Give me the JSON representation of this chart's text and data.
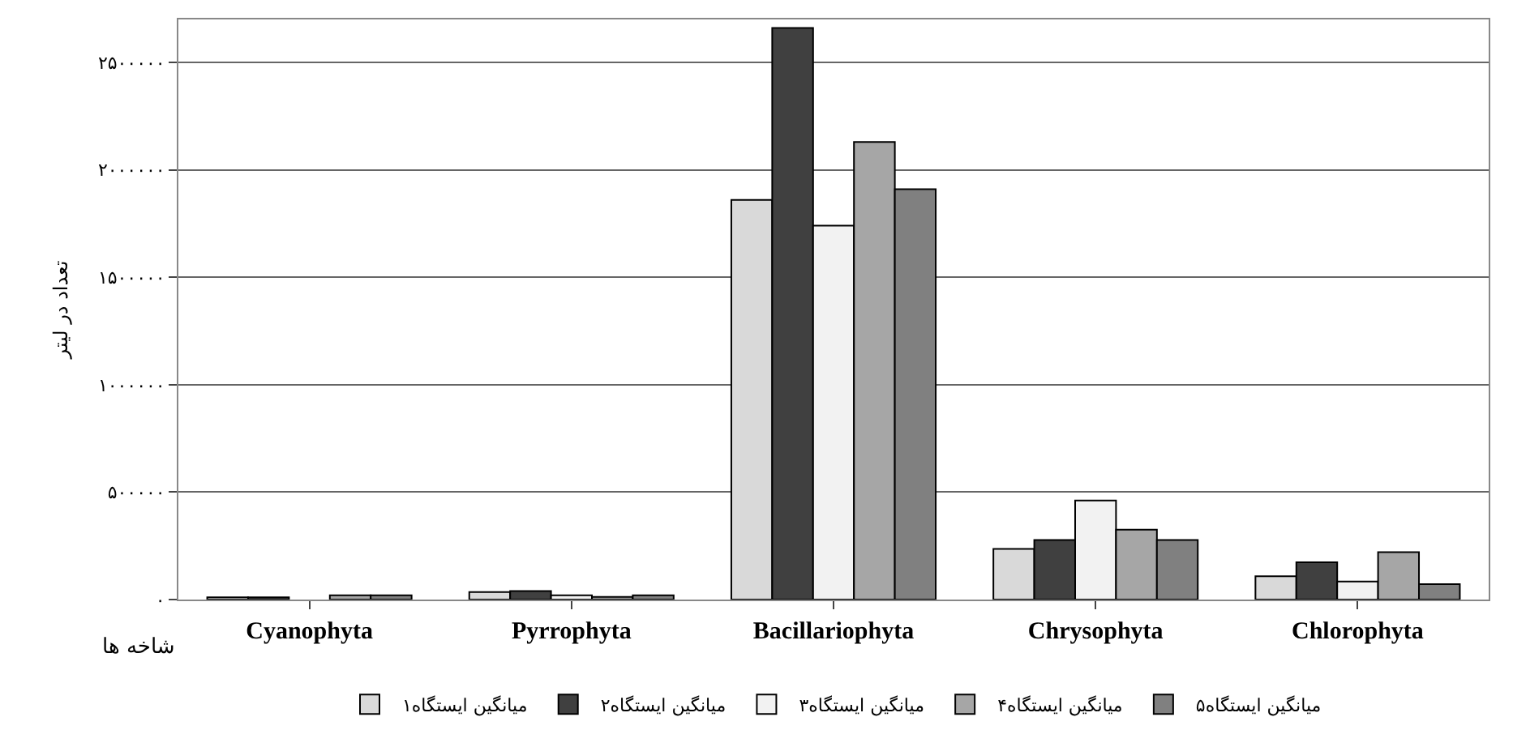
{
  "chart_data": {
    "type": "bar",
    "xlabel": "شاخه ها",
    "ylabel": "تعداد در لیتر",
    "categories": [
      "Cyanophyta",
      "Pyrrophyta",
      "Bacillariophyta",
      "Chrysophyta",
      "Chlorophyta"
    ],
    "series": [
      {
        "name": "میانگین ایستگاه۱",
        "color": "#d9d9d9",
        "values": [
          10000,
          35000,
          1860000,
          236000,
          108000
        ]
      },
      {
        "name": "میانگین ایستگاه۲",
        "color": "#404040",
        "values": [
          10000,
          40000,
          2660000,
          277000,
          173000
        ]
      },
      {
        "name": "میانگین ایستگاه۳",
        "color": "#f2f2f2",
        "values": [
          null,
          20000,
          1740000,
          461000,
          84000
        ]
      },
      {
        "name": "میانگین ایستگاه۴",
        "color": "#a6a6a6",
        "values": [
          20000,
          12000,
          2130000,
          325000,
          221000
        ]
      },
      {
        "name": "میانگین ایستگاه۵",
        "color": "#808080",
        "values": [
          20000,
          20000,
          1910000,
          277000,
          72000
        ]
      }
    ],
    "ylim": [
      0,
      2700000
    ],
    "yticks": [
      {
        "value": 0,
        "label": "۰"
      },
      {
        "value": 500000,
        "label": "۵۰۰۰۰۰"
      },
      {
        "value": 1000000,
        "label": "۱۰۰۰۰۰۰"
      },
      {
        "value": 1500000,
        "label": "۱۵۰۰۰۰۰"
      },
      {
        "value": 2000000,
        "label": "۲۰۰۰۰۰۰"
      },
      {
        "value": 2500000,
        "label": "۲۵۰۰۰۰۰"
      }
    ],
    "grid": "y",
    "legend": "bottom"
  }
}
